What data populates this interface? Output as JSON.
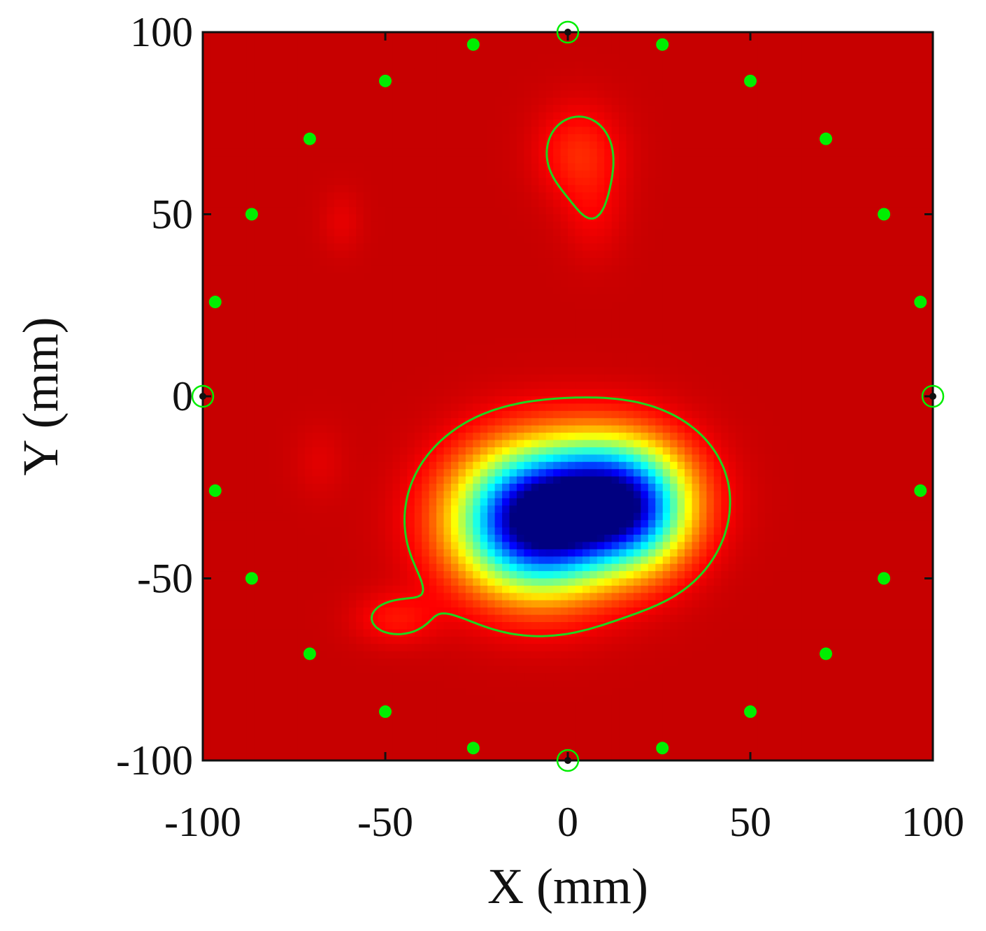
{
  "chart_data": {
    "type": "heatmap",
    "xlabel": "X (mm)",
    "ylabel": "Y (mm)",
    "xlim": [
      -100,
      100
    ],
    "ylim": [
      -100,
      100
    ],
    "x_ticks": [
      -100,
      -50,
      0,
      50,
      100
    ],
    "y_ticks": [
      -100,
      -50,
      0,
      50,
      100
    ],
    "x_tick_labels": [
      "-100",
      "-50",
      "0",
      "50",
      "100"
    ],
    "y_tick_labels": [
      "-100",
      "-50",
      "0",
      "50",
      "100"
    ],
    "grid": false,
    "colormap": "jet",
    "background_level": 0.93,
    "field_components": [
      {
        "x": -8,
        "y": -34,
        "sx": 15,
        "sy": 13,
        "amplitude": -1.0
      },
      {
        "x": 14,
        "y": -27,
        "sx": 13,
        "sy": 11,
        "amplitude": -0.62
      },
      {
        "x": 20,
        "y": -36,
        "sx": 10,
        "sy": 10,
        "amplitude": -0.22
      },
      {
        "x": 3,
        "y": 67,
        "sx": 8,
        "sy": 9,
        "amplitude": -0.09
      },
      {
        "x": 7,
        "y": 50,
        "sx": 6,
        "sy": 9,
        "amplitude": -0.04
      },
      {
        "x": -47,
        "y": -61,
        "sx": 8,
        "sy": 5,
        "amplitude": -0.07
      },
      {
        "x": -62,
        "y": 48,
        "sx": 4,
        "sy": 6,
        "amplitude": -0.03
      },
      {
        "x": -68,
        "y": -18,
        "sx": 5,
        "sy": 7,
        "amplitude": -0.025
      }
    ],
    "contour_level": 0.88,
    "contour_color": "#1ed61e",
    "electrode_color": "#00ee00",
    "electrodes": [
      {
        "x": -25.9,
        "y": 96.6
      },
      {
        "x": 25.9,
        "y": 96.6
      },
      {
        "x": -50,
        "y": 86.6
      },
      {
        "x": 50,
        "y": 86.6
      },
      {
        "x": -70.7,
        "y": 70.7
      },
      {
        "x": 70.7,
        "y": 70.7
      },
      {
        "x": -86.6,
        "y": 50
      },
      {
        "x": 86.6,
        "y": 50
      },
      {
        "x": -96.6,
        "y": 25.9
      },
      {
        "x": 96.6,
        "y": 25.9
      },
      {
        "x": -96.6,
        "y": -25.9
      },
      {
        "x": 96.6,
        "y": -25.9
      },
      {
        "x": -86.6,
        "y": -50
      },
      {
        "x": 86.6,
        "y": -50
      },
      {
        "x": -70.7,
        "y": -70.7
      },
      {
        "x": 70.7,
        "y": -70.7
      },
      {
        "x": -50,
        "y": -86.6
      },
      {
        "x": 50,
        "y": -86.6
      },
      {
        "x": -25.9,
        "y": -96.6
      },
      {
        "x": 25.9,
        "y": -96.6
      }
    ],
    "edge_markers": [
      {
        "x": 0,
        "y": 100
      },
      {
        "x": 0,
        "y": -100
      },
      {
        "x": -100,
        "y": 0
      },
      {
        "x": 100,
        "y": 0
      }
    ]
  }
}
